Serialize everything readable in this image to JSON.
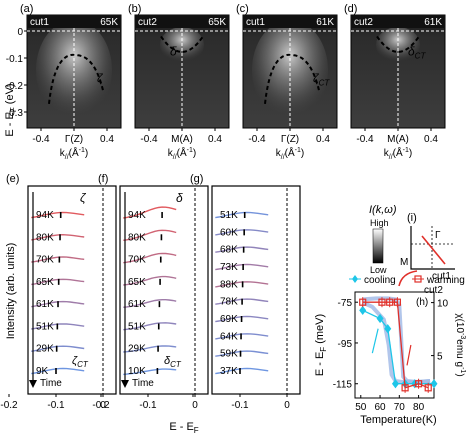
{
  "colors": {
    "cooling": "#1ec6e8",
    "warming": "#e0302a",
    "dash": "#000000",
    "arpes_bg": "#7e7e7e"
  },
  "top_row": {
    "ylabel": "E - E",
    "ylabel_sub": "F",
    "ylabel_unit": " (eV)",
    "yticks": [
      "0",
      "-0.1",
      "-0.2",
      "-0.3"
    ],
    "xunit_main": "k",
    "xunit_sub": "//",
    "xunit_tail": "(Å",
    "xunit_sup": "-1",
    "xunit_close": ")",
    "panels": [
      {
        "tag": "(a)",
        "cut": "cut1",
        "temp": "65K",
        "center": "Γ(Z)",
        "xticks": [
          "-0.4",
          "0.4"
        ],
        "band": "ζ",
        "band_sub": ""
      },
      {
        "tag": "(b)",
        "cut": "cut2",
        "temp": "65K",
        "center": "M(A)",
        "xticks": [
          "-0.4",
          "0.4"
        ],
        "band": "δ",
        "band_sub": ""
      },
      {
        "tag": "(c)",
        "cut": "cut1",
        "temp": "61K",
        "center": "Γ(Z)",
        "xticks": [
          "-0.4",
          "0.4"
        ],
        "band": "ζ",
        "band_sub": "CT"
      },
      {
        "tag": "(d)",
        "cut": "cut2",
        "temp": "61K",
        "center": "M(A)",
        "xticks": [
          "-0.4",
          "0.4"
        ],
        "band": "δ",
        "band_sub": "CT"
      }
    ]
  },
  "intensity_scale": {
    "title": "I(k,ω)",
    "high": "High",
    "low": "Low"
  },
  "bz_schematic": {
    "tag": "(i)",
    "gamma": "Γ",
    "m": "M",
    "cut1": "cut1",
    "cut2": "cut2"
  },
  "edc_panels": {
    "ylabel": "Intensity (arb. units)",
    "xlabel": "E - E",
    "xlabel_sub": "F",
    "xticks": [
      "-0.2",
      "-0.1",
      "0"
    ],
    "time_label": "Time",
    "panels": [
      {
        "tag": "(e)",
        "temps": [
          "94K",
          "80K",
          "70K",
          "65K",
          "61K",
          "51K",
          "29K",
          "9K"
        ],
        "band": "ζ",
        "band_low": "ζ",
        "band_low_sub": "CT"
      },
      {
        "tag": "(f)",
        "temps": [
          "94K",
          "80K",
          "70K",
          "65K",
          "61K",
          "51K",
          "29K",
          "10K"
        ],
        "band": "δ",
        "band_low": "δ",
        "band_low_sub": "CT"
      },
      {
        "tag": "(g)",
        "temps": [
          "51K",
          "60K",
          "68K",
          "73K",
          "88K",
          "78K",
          "69K",
          "64K",
          "59K",
          "37K"
        ],
        "band": "",
        "band_low": "",
        "band_low_sub": ""
      }
    ]
  },
  "chart_data": {
    "type": "scatter",
    "tag": "(h)",
    "xlabel": "Temperature(K)",
    "ylabel": "E - E",
    "ylabel_sub": "F",
    "ylabel_unit": " (meV)",
    "y2label": "χ(10",
    "y2label_sup": "-3",
    "y2label_tail": "emu g",
    "y2label_sup2": "-1",
    "y2label_close": ")",
    "xlim": [
      47,
      88
    ],
    "ylim": [
      -122,
      -70
    ],
    "y2lim": [
      1,
      11
    ],
    "xticks": [
      "50",
      "60",
      "70",
      "80"
    ],
    "yticks": [
      "-75",
      "-95",
      "-115"
    ],
    "y2ticks": [
      "10",
      "5"
    ],
    "legend": [
      "cooling",
      "warming"
    ],
    "series": [
      {
        "name": "cooling",
        "points": [
          [
            51,
            -79
          ],
          [
            60,
            -83
          ],
          [
            64,
            -88
          ],
          [
            68,
            -115
          ],
          [
            73,
            -115
          ],
          [
            78,
            -115
          ],
          [
            88,
            -115
          ]
        ]
      },
      {
        "name": "warming",
        "points": [
          [
            51,
            -75
          ],
          [
            61,
            -75
          ],
          [
            65,
            -75
          ],
          [
            69,
            -75
          ],
          [
            73,
            -117
          ],
          [
            80,
            -115
          ],
          [
            85,
            -117
          ]
        ]
      }
    ],
    "susceptibility_curves": [
      {
        "name": "warming",
        "points": [
          [
            51,
            10.3
          ],
          [
            58,
            10.4
          ],
          [
            64,
            10.4
          ],
          [
            68,
            10.3
          ],
          [
            70,
            9.8
          ],
          [
            71,
            6.5
          ],
          [
            72,
            3.0
          ],
          [
            74,
            2.6
          ],
          [
            80,
            2.5
          ],
          [
            86,
            2.6
          ]
        ]
      },
      {
        "name": "cooling",
        "points": [
          [
            86,
            2.6
          ],
          [
            78,
            2.5
          ],
          [
            72,
            2.5
          ],
          [
            68,
            2.6
          ],
          [
            66,
            3.2
          ],
          [
            64.5,
            6.0
          ],
          [
            62,
            8.4
          ],
          [
            56,
            9.6
          ],
          [
            51,
            10.0
          ]
        ]
      }
    ]
  }
}
